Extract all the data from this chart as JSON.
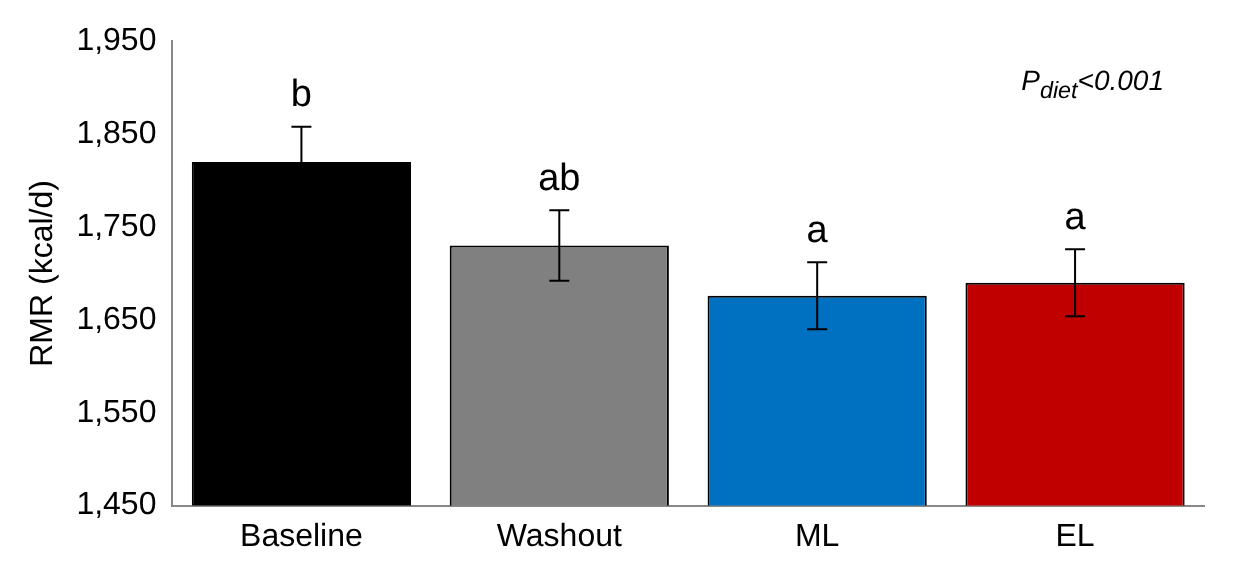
{
  "chart_data": {
    "type": "bar",
    "ylabel": "RMR (kcal/d)",
    "categories": [
      "Baseline",
      "Washout",
      "ML",
      "EL"
    ],
    "values": [
      1820,
      1730,
      1676,
      1690
    ],
    "colors": [
      "#000000",
      "#808080",
      "#0070c0",
      "#c00000"
    ],
    "errors": [
      38,
      38,
      36,
      36
    ],
    "ylim": [
      1450,
      1950
    ],
    "yticks": [
      {
        "value": 1450,
        "label": "1,450"
      },
      {
        "value": 1550,
        "label": "1,550"
      },
      {
        "value": 1650,
        "label": "1,650"
      },
      {
        "value": 1750,
        "label": "1,750"
      },
      {
        "value": 1850,
        "label": "1,850"
      },
      {
        "value": 1950,
        "label": "1,950"
      }
    ],
    "grid": false,
    "legend": false,
    "annotations": [
      "b",
      "ab",
      "a",
      "a",
      "P$_{diet}$<0.001"
    ]
  }
}
